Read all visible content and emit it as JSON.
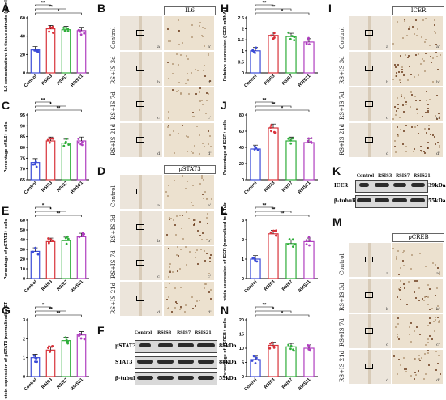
{
  "panels": {
    "A": "A",
    "B": "B",
    "C": "C",
    "D": "D",
    "E": "E",
    "F": "F",
    "G": "G",
    "H": "H",
    "I": "I",
    "J": "J",
    "K": "K",
    "L": "L",
    "M": "M",
    "N": "N"
  },
  "groups": [
    "Control",
    "RSIS3",
    "RSIS7",
    "RSIS21"
  ],
  "ihc_rows": [
    "Control",
    "RS+IS 3d",
    "RS+IS 7d",
    "RS+IS 21d"
  ],
  "ihc_sub": {
    "left": [
      "a",
      "b",
      "c",
      "d"
    ],
    "right": [
      "a'",
      "b'",
      "c'",
      "d'"
    ]
  },
  "ihc_headers": {
    "B": "IL6",
    "D": "pSTAT3",
    "I": "ICER",
    "M": "pCREB"
  },
  "western_F": {
    "lanes": [
      "Control",
      "RSIS3",
      "RSIS7",
      "RSIS21"
    ],
    "rows": [
      {
        "name": "pSTAT3",
        "kda": "88kDa"
      },
      {
        "name": "STAT3",
        "kda": "88kDa"
      },
      {
        "name": "β-tubulin",
        "kda": "55kDa"
      }
    ]
  },
  "western_K": {
    "lanes": [
      "Control",
      "RSIS3",
      "RSIS7",
      "RSIS21"
    ],
    "rows": [
      {
        "name": "ICER",
        "kda": "39kDa"
      },
      {
        "name": "β-tubulin",
        "kda": "55kDa"
      }
    ]
  },
  "colors": {
    "Control": "#3b4bd8",
    "RSIS3": "#d8323a",
    "RSIS7": "#2fae3a",
    "RSIS21": "#b03fc0"
  },
  "chart_data": [
    {
      "id": "A",
      "type": "bar",
      "ylabel": "IL6 concentrations in tissue extracts (pg/ml)",
      "categories": [
        "Control",
        "RSIS3",
        "RSIS7",
        "RSIS21"
      ],
      "values": [
        25,
        48,
        47,
        46
      ],
      "ylim": [
        0,
        60
      ],
      "yticks": [
        0,
        20,
        40,
        60
      ],
      "sig": [
        [
          "Control",
          "RSIS3",
          "**"
        ],
        [
          "Control",
          "RSIS7",
          "**"
        ],
        [
          "Control",
          "RSIS21",
          "*"
        ]
      ]
    },
    {
      "id": "C",
      "type": "bar",
      "ylabel": "Percentage of IL6+ cells",
      "categories": [
        "Control",
        "RSIS3",
        "RSIS7",
        "RSIS21"
      ],
      "values": [
        73,
        83,
        82,
        83
      ],
      "ylim": [
        65,
        95
      ],
      "yticks": [
        65,
        70,
        75,
        80,
        85,
        90,
        95
      ],
      "sig": [
        [
          "Control",
          "RSIS3",
          "**"
        ],
        [
          "Control",
          "RSIS7",
          "*"
        ],
        [
          "Control",
          "RSIS21",
          "**"
        ]
      ]
    },
    {
      "id": "E",
      "type": "bar",
      "ylabel": "Percentage of pSTAT3+ cells",
      "categories": [
        "Control",
        "RSIS3",
        "RSIS7",
        "RSIS21"
      ],
      "values": [
        28,
        38,
        39,
        43
      ],
      "ylim": [
        0,
        60
      ],
      "yticks": [
        0,
        10,
        20,
        30,
        40,
        50,
        60
      ],
      "sig": [
        [
          "Control",
          "RSIS3",
          "*"
        ],
        [
          "Control",
          "RSIS7",
          "*"
        ],
        [
          "Control",
          "RSIS21",
          "**"
        ]
      ]
    },
    {
      "id": "G",
      "type": "bar",
      "ylabel": "Protein expression of pSTAT3 (normalized to STAT3)",
      "categories": [
        "Control",
        "RSIS3",
        "RSIS7",
        "RSIS21"
      ],
      "values": [
        1.0,
        1.4,
        1.9,
        2.2
      ],
      "ylim": [
        0,
        3
      ],
      "yticks": [
        0,
        1,
        2,
        3
      ],
      "sig": [
        [
          "Control",
          "RSIS3",
          "*"
        ],
        [
          "Control",
          "RSIS7",
          "**"
        ],
        [
          "Control",
          "RSIS21",
          "**"
        ]
      ]
    },
    {
      "id": "H",
      "type": "bar",
      "ylabel": "Relative expression (ICER mRNA)",
      "categories": [
        "Control",
        "RSIS3",
        "RSIS7",
        "RSIS21"
      ],
      "values": [
        1.0,
        1.7,
        1.65,
        1.4
      ],
      "ylim": [
        0,
        2.5
      ],
      "yticks": [
        0.0,
        0.5,
        1.0,
        1.5,
        2.0,
        2.5
      ],
      "sig": [
        [
          "Control",
          "RSIS3",
          "**"
        ],
        [
          "Control",
          "RSIS7",
          "**"
        ],
        [
          "Control",
          "RSIS21",
          "*"
        ]
      ]
    },
    {
      "id": "J",
      "type": "bar",
      "ylabel": "Percentage of ICER+ cells",
      "categories": [
        "Control",
        "RSIS3",
        "RSIS7",
        "RSIS21"
      ],
      "values": [
        38,
        64,
        48,
        46
      ],
      "ylim": [
        0,
        80
      ],
      "yticks": [
        0,
        20,
        40,
        60,
        80
      ],
      "sig": [
        [
          "Control",
          "RSIS3",
          "**"
        ],
        [
          "Control",
          "RSIS7",
          "**"
        ],
        [
          "Control",
          "RSIS21",
          "*"
        ]
      ]
    },
    {
      "id": "L",
      "type": "bar",
      "ylabel": "Protein expression of ICER (normalized to β-Tubulin)",
      "categories": [
        "Control",
        "RSIS3",
        "RSIS7",
        "RSIS21"
      ],
      "values": [
        1.0,
        2.3,
        1.8,
        1.9
      ],
      "ylim": [
        0,
        3
      ],
      "yticks": [
        0,
        1,
        2,
        3
      ],
      "sig": [
        [
          "Control",
          "RSIS3",
          "**"
        ],
        [
          "Control",
          "RSIS7",
          "**"
        ],
        [
          "Control",
          "RSIS21",
          "**"
        ]
      ]
    },
    {
      "id": "N",
      "type": "bar",
      "ylabel": "Percentage of pCREB+ cells",
      "categories": [
        "Control",
        "RSIS3",
        "RSIS7",
        "RSIS21"
      ],
      "values": [
        6,
        11,
        10.5,
        10
      ],
      "ylim": [
        0,
        20
      ],
      "yticks": [
        0,
        5,
        10,
        15,
        20
      ],
      "sig": [
        [
          "Control",
          "RSIS3",
          "**"
        ],
        [
          "Control",
          "RSIS7",
          "*"
        ],
        [
          "Control",
          "RSIS21",
          "*"
        ]
      ]
    }
  ]
}
